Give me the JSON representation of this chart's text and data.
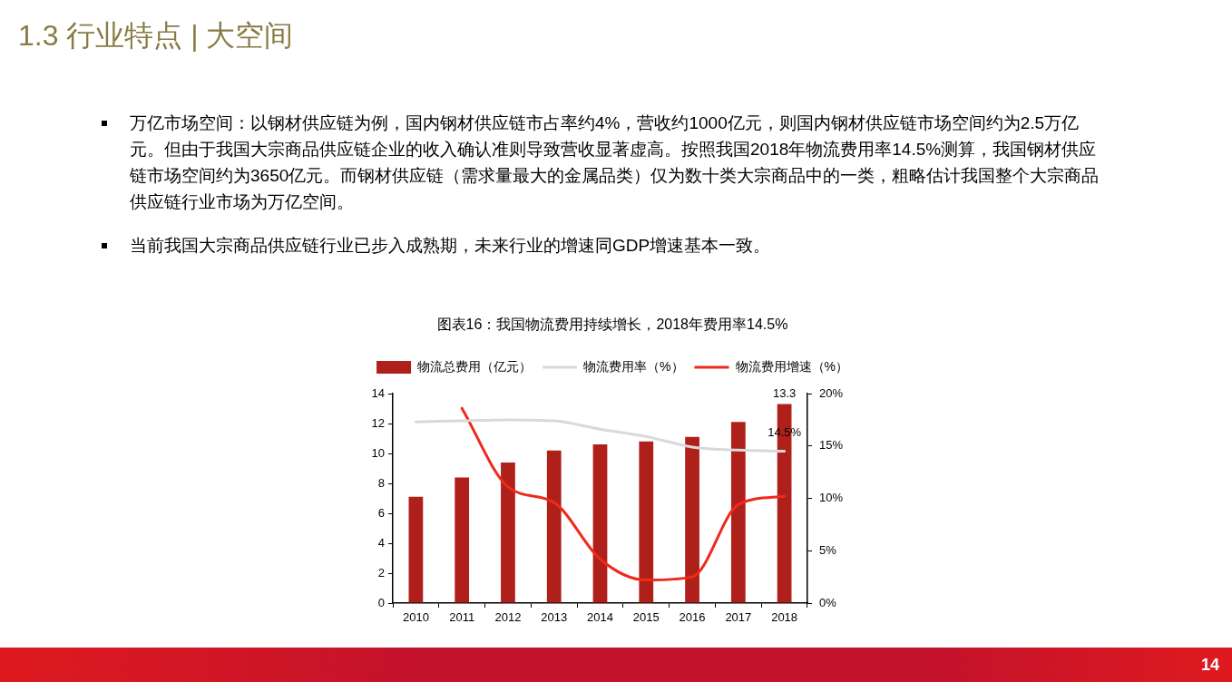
{
  "chart_data": {
    "type": "bar",
    "title": "图表16：我国物流费用持续增长，2018年费用率14.5%",
    "categories": [
      "2010",
      "2011",
      "2012",
      "2013",
      "2014",
      "2015",
      "2016",
      "2017",
      "2018"
    ],
    "series": [
      {
        "name": "物流总费用（亿元）",
        "color": "#b0201b",
        "values": [
          7.1,
          8.4,
          9.4,
          10.2,
          10.6,
          10.8,
          11.1,
          12.1,
          13.3
        ],
        "value_labels": [
          null,
          null,
          null,
          null,
          null,
          null,
          null,
          null,
          "13.3"
        ]
      },
      {
        "name": "物流费用率（%）",
        "type": "line",
        "axis": "y2",
        "color": "#d9d9d9",
        "values": [
          17.3,
          17.4,
          17.5,
          17.4,
          16.6,
          15.9,
          14.9,
          14.6,
          14.5
        ],
        "value_labels": [
          null,
          null,
          null,
          null,
          null,
          null,
          null,
          null,
          "14.5%"
        ]
      },
      {
        "name": "物流费用增速（%）",
        "type": "line",
        "axis": "y2",
        "color": "#ee2a1b",
        "values": [
          null,
          18.6,
          11.1,
          9.6,
          4.2,
          2.2,
          2.5,
          9.4,
          10.2
        ]
      }
    ],
    "ylim": [
      0,
      14
    ],
    "yticks": [
      0,
      2,
      4,
      6,
      8,
      10,
      12,
      14
    ],
    "y2lim": [
      0,
      20
    ],
    "y2ticks": [
      {
        "value": 0,
        "label": "0%"
      },
      {
        "value": 5,
        "label": "5%"
      },
      {
        "value": 10,
        "label": "10%"
      },
      {
        "value": 15,
        "label": "15%"
      },
      {
        "value": 20,
        "label": "20%"
      }
    ],
    "legend": "top",
    "grid": false,
    "marker": "none",
    "annotations": [
      "1.3 行业特点 | 大空间",
      "万亿市场空间：以钢材供应链为例，国内钢材供应链市占率约4%，营收约1000亿元，则国内钢材供应链市场空间约为2.5万亿元。但由于我国大宗商品供应链企业的收入确认准则导致营收显著虚高。按照我国2018年物流费用率14.5%测算，我国钢材供应链市场空间约为3650亿元。而钢材供应链（需求量最大的金属品类）仅为数十类大宗商品中的一类，粗略估计我国整个大宗商品供应链行业市场为万亿空间。",
      "当前我国大宗商品供应链行业已步入成熟期，未来行业的增速同GDP增速基本一致。",
      "14"
    ]
  }
}
